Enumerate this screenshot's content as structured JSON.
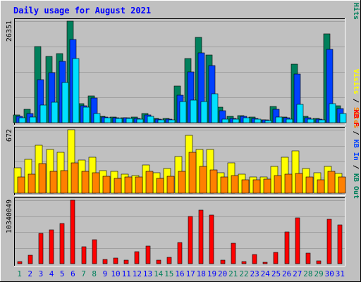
{
  "title": "Daily usage for August 2021",
  "colors": {
    "background": "#c0c0c0",
    "border": "#808080",
    "title": "#0000ff",
    "hits": "#00805c",
    "files": "#0040ff",
    "pages": "#00e0ff",
    "visits": "#ffff00",
    "sites": "#ff8000",
    "kbytes": "#ff0000",
    "weekend_day": "#00805c",
    "weekday": "#0000ff",
    "gridline": "#a0a0a0"
  },
  "chart_data": {
    "type": "bar",
    "categories": [
      "1",
      "2",
      "3",
      "4",
      "5",
      "6",
      "7",
      "8",
      "9",
      "10",
      "11",
      "12",
      "13",
      "14",
      "15",
      "16",
      "17",
      "18",
      "19",
      "20",
      "21",
      "22",
      "23",
      "24",
      "25",
      "26",
      "27",
      "28",
      "29",
      "30",
      "31"
    ],
    "weekend_days": [
      "1",
      "7",
      "8",
      "14",
      "15",
      "21",
      "22",
      "28",
      "29"
    ],
    "panels": [
      {
        "id": "top",
        "max_label": "26351",
        "max": 26351,
        "right_labels": [
          {
            "text": "Pages",
            "color": "#00e0ff"
          },
          {
            "text": " / ",
            "color": "#000000"
          },
          {
            "text": "Files",
            "color": "#0040ff"
          },
          {
            "text": " / ",
            "color": "#000000"
          },
          {
            "text": "Hits",
            "color": "#00805c"
          }
        ],
        "series": [
          {
            "key": "hits",
            "values": [
              1930,
              3420,
              19850,
              17150,
              18000,
              26351,
              5020,
              6980,
              1620,
              1500,
              1340,
              1450,
              2470,
              1050,
              1020,
              9590,
              16580,
              22090,
              17600,
              4100,
              1600,
              1850,
              1520,
              820,
              4130,
              1400,
              15150,
              1640,
              1020,
              23090,
              4460
            ]
          },
          {
            "key": "files",
            "values": [
              1650,
              2440,
              11130,
              12940,
              15990,
              21570,
              4370,
              6390,
              1380,
              1270,
              1190,
              1140,
              1980,
              850,
              830,
              7140,
              13100,
              18190,
              14820,
              3070,
              1140,
              1580,
              1160,
              700,
              3450,
              1230,
              12650,
              1230,
              870,
              19120,
              3610
            ]
          },
          {
            "key": "pages",
            "values": [
              1230,
              1540,
              4640,
              5340,
              10440,
              16740,
              3960,
              2320,
              1190,
              1110,
              1050,
              960,
              1620,
              730,
              670,
              5400,
              5900,
              5400,
              7570,
              880,
              990,
              1200,
              950,
              570,
              1400,
              1000,
              4700,
              1000,
              740,
              4910,
              2380
            ]
          }
        ]
      },
      {
        "id": "middle",
        "max_label": "672",
        "max": 672,
        "right_labels": [
          {
            "text": "Visits",
            "color": "#ffff00"
          },
          {
            "text": " / ",
            "color": "#000000"
          },
          {
            "text": "Sites",
            "color": "#ff8000"
          }
        ],
        "series": [
          {
            "key": "visits",
            "values": [
              270,
              360,
              510,
              460,
              430,
              672,
              350,
              380,
              240,
              230,
              200,
              190,
              300,
              220,
              260,
              390,
              610,
              460,
              460,
              220,
              320,
              200,
              170,
              170,
              280,
              380,
              450,
              260,
              220,
              280,
              210
            ]
          },
          {
            "key": "sites",
            "values": [
              170,
              200,
              310,
              230,
              240,
              320,
              230,
              220,
              180,
              160,
              170,
              170,
              230,
              160,
              180,
              230,
              430,
              280,
              250,
              170,
              190,
              140,
              140,
              150,
              190,
              200,
              210,
              170,
              140,
              230,
              170
            ]
          }
        ]
      },
      {
        "id": "bottom",
        "max_label": "10340049",
        "max": 10340049,
        "right_labels": [
          {
            "text": "KB F",
            "color": "#ff0000"
          },
          {
            "text": " / ",
            "color": "#000000"
          },
          {
            "text": "KB In",
            "color": "#0040ff"
          },
          {
            "text": " / ",
            "color": "#000000"
          },
          {
            "text": "KB Out",
            "color": "#00805c"
          }
        ],
        "series": [
          {
            "key": "kbytes",
            "values": [
              330000,
              1410000,
              4950000,
              5500000,
              6600000,
              10340049,
              2810000,
              3950000,
              660000,
              880000,
              600000,
              2000000,
              2900000,
              550000,
              1000000,
              3430000,
              7690000,
              8680000,
              7900000,
              550000,
              3320000,
              330000,
              1540000,
              220000,
              1880000,
              5170000,
              7500000,
              1740000,
              440000,
              7280000,
              6370000
            ]
          }
        ]
      }
    ]
  }
}
